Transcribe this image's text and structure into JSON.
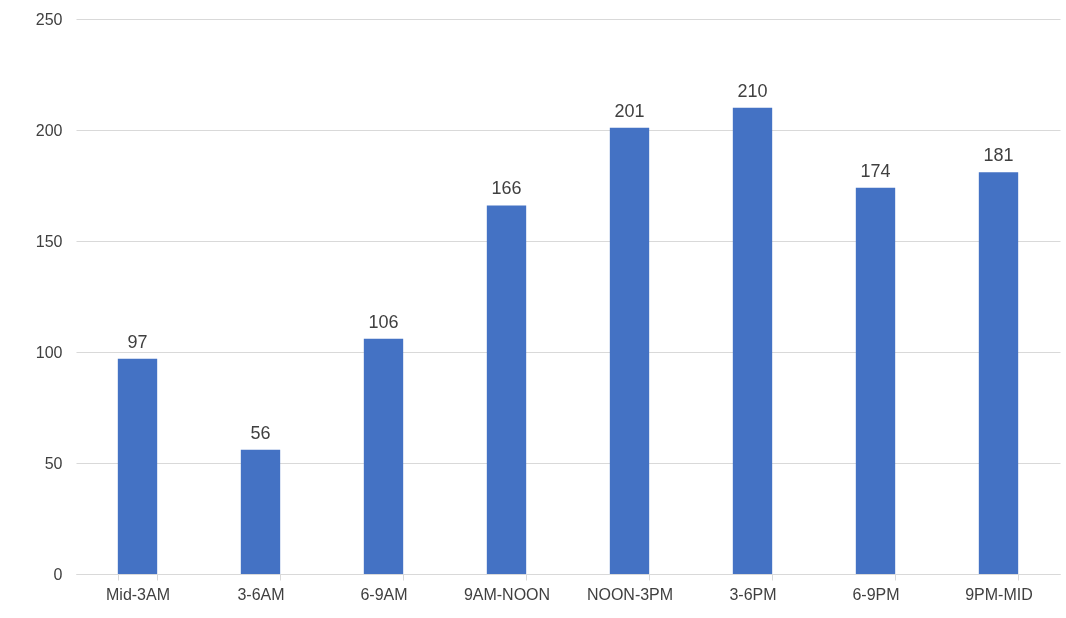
{
  "chart_data": {
    "type": "bar",
    "categories": [
      "Mid-3AM",
      "3-6AM",
      "6-9AM",
      "9AM-NOON",
      "NOON-3PM",
      "3-6PM",
      "6-9PM",
      "9PM-MID"
    ],
    "values": [
      97,
      56,
      106,
      166,
      201,
      210,
      174,
      181
    ],
    "color": "#4472c4",
    "ylim": [
      0,
      250
    ],
    "yticks": [
      0,
      50,
      100,
      150,
      200,
      250
    ],
    "grid": "y",
    "data_labels": true
  }
}
